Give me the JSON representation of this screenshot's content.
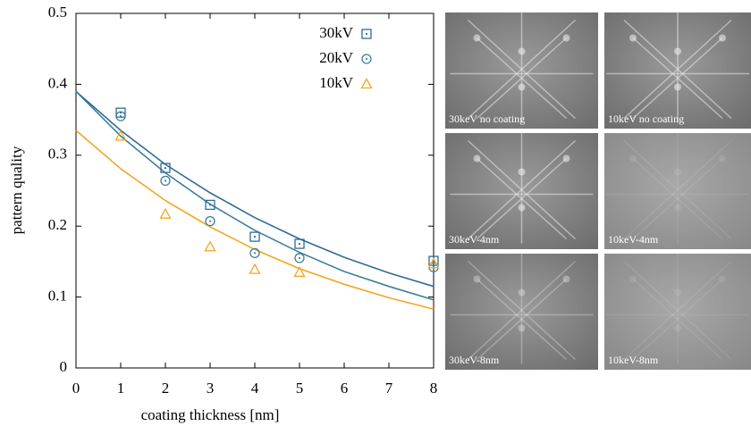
{
  "chart_data": {
    "type": "scatter",
    "xlabel": "coating thickness [nm]",
    "ylabel": "pattern quality",
    "x": [
      1,
      2,
      3,
      4,
      5,
      8
    ],
    "fit_x": [
      0,
      1,
      2,
      3,
      4,
      5,
      6,
      7,
      8
    ],
    "series": [
      {
        "name": "30kV",
        "color": "#2f6b96",
        "marker": "square",
        "values": [
          0.36,
          0.282,
          0.23,
          0.185,
          0.175,
          0.151
        ],
        "fit": [
          0.39,
          0.335,
          0.287,
          0.247,
          0.212,
          0.182,
          0.156,
          0.134,
          0.115
        ]
      },
      {
        "name": "20kV",
        "color": "#3d7f9c",
        "marker": "circle",
        "values": [
          0.355,
          0.264,
          0.207,
          0.162,
          0.155,
          0.142
        ],
        "fit": [
          0.39,
          0.327,
          0.275,
          0.231,
          0.194,
          0.163,
          0.136,
          0.115,
          0.096
        ]
      },
      {
        "name": "10kV",
        "color": "#f2a623",
        "marker": "triangle",
        "values": [
          0.327,
          0.217,
          0.171,
          0.139,
          0.135,
          0.147
        ],
        "fit": [
          0.335,
          0.281,
          0.236,
          0.199,
          0.167,
          0.14,
          0.118,
          0.099,
          0.083
        ]
      }
    ],
    "xlim": [
      0,
      8
    ],
    "xticks": [
      0,
      1,
      2,
      3,
      4,
      5,
      6,
      7,
      8
    ],
    "ylim": [
      0,
      0.5
    ],
    "yticks": [
      0,
      0.1,
      0.2,
      0.3,
      0.4,
      0.5
    ],
    "legend": "top-right"
  },
  "panels": [
    "30keV no coating",
    "10keV no coating",
    "30keV-4nm",
    "10keV-4nm",
    "30keV-8nm",
    "10keV-8nm"
  ]
}
